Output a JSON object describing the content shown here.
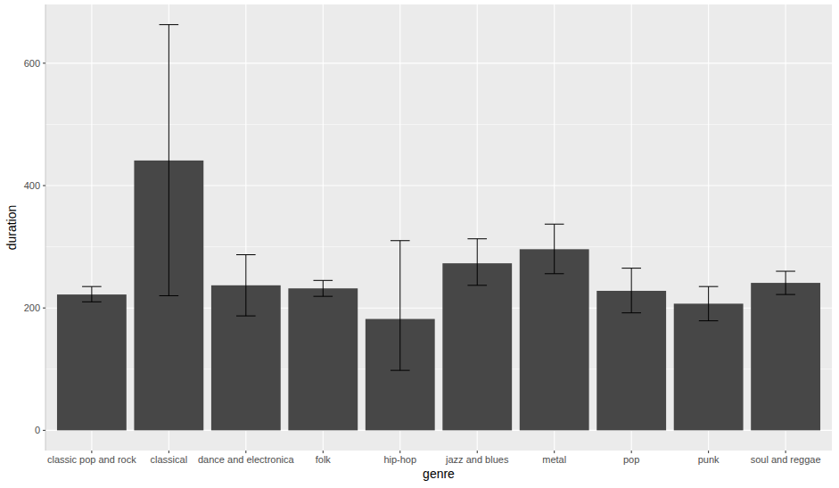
{
  "chart_data": {
    "type": "bar",
    "x_label": "genre",
    "y_label": "duration",
    "categories": [
      "classic pop and rock",
      "classical",
      "dance and electronica",
      "folk",
      "hip-hop",
      "jazz and blues",
      "metal",
      "pop",
      "punk",
      "soul and reggae"
    ],
    "values": [
      222,
      441,
      237,
      232,
      182,
      273,
      296,
      228,
      207,
      241
    ],
    "error_low": [
      210,
      220,
      187,
      219,
      98,
      237,
      256,
      192,
      179,
      222
    ],
    "error_high": [
      235,
      663,
      287,
      245,
      310,
      313,
      337,
      265,
      235,
      260
    ],
    "color": "#474747",
    "ylim": [
      -33,
      696
    ],
    "yticks": [
      0,
      200,
      400,
      600
    ],
    "grid": true
  }
}
